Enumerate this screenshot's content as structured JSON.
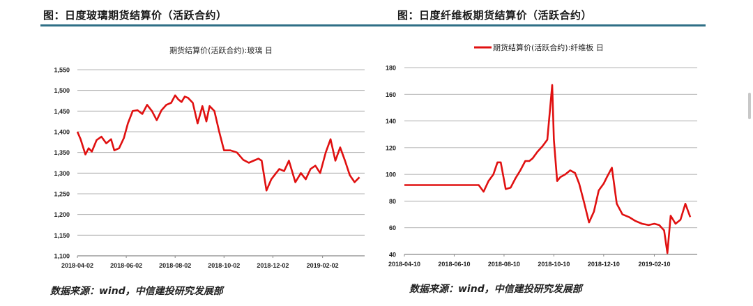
{
  "left_panel": {
    "figure_title": "图：日度玻璃期货结算价（活跃合约）",
    "source": "数据来源：wind，中信建投研究发展部"
  },
  "right_panel": {
    "figure_title": "图：日度纤维板期货结算价（活跃合约）",
    "source": "数据来源：wind，中信建投研究发展部"
  },
  "colors": {
    "line": "#e01010",
    "rule": "#2f6f86",
    "grid": "#9a9a9a"
  },
  "chart_data": [
    {
      "type": "line",
      "title": "期货结算价(活跃合约):玻璃 日",
      "xlabel": "",
      "ylabel": "",
      "ylim": [
        1100,
        1550
      ],
      "grid": true,
      "legend": "none",
      "y_ticks": [
        "1,550",
        "1,500",
        "1,450",
        "1,400",
        "1,350",
        "1,300",
        "1,250",
        "1,200",
        "1,150",
        "1,100"
      ],
      "x_ticks": [
        "2018-04-02",
        "2018-06-02",
        "2018-08-02",
        "2018-10-02",
        "2018-12-02",
        "2019-02-02"
      ],
      "series": [
        {
          "name": "期货结算价(活跃合约):玻璃 日",
          "x": [
            "2018-04-02",
            "2018-04-06",
            "2018-04-12",
            "2018-04-16",
            "2018-04-20",
            "2018-04-26",
            "2018-05-02",
            "2018-05-08",
            "2018-05-14",
            "2018-05-18",
            "2018-05-24",
            "2018-05-30",
            "2018-06-04",
            "2018-06-10",
            "2018-06-16",
            "2018-06-22",
            "2018-06-28",
            "2018-07-04",
            "2018-07-10",
            "2018-07-16",
            "2018-07-22",
            "2018-07-28",
            "2018-08-02",
            "2018-08-06",
            "2018-08-10",
            "2018-08-14",
            "2018-08-18",
            "2018-08-24",
            "2018-08-30",
            "2018-09-05",
            "2018-09-10",
            "2018-09-14",
            "2018-09-20",
            "2018-09-26",
            "2018-10-02",
            "2018-10-10",
            "2018-10-18",
            "2018-10-26",
            "2018-11-02",
            "2018-11-08",
            "2018-11-14",
            "2018-11-18",
            "2018-11-24",
            "2018-11-30",
            "2018-12-06",
            "2018-12-10",
            "2018-12-16",
            "2018-12-22",
            "2018-12-30",
            "2019-01-06",
            "2019-01-12",
            "2019-01-18",
            "2019-01-24",
            "2019-01-30",
            "2019-02-06",
            "2019-02-12",
            "2019-02-18",
            "2019-02-24",
            "2019-03-02",
            "2019-03-08",
            "2019-03-14",
            "2019-03-20"
          ],
          "values": [
            1400,
            1382,
            1345,
            1360,
            1352,
            1380,
            1388,
            1372,
            1382,
            1355,
            1360,
            1385,
            1420,
            1450,
            1452,
            1443,
            1465,
            1450,
            1428,
            1452,
            1465,
            1470,
            1488,
            1478,
            1472,
            1485,
            1482,
            1470,
            1420,
            1462,
            1425,
            1462,
            1450,
            1400,
            1355,
            1355,
            1350,
            1332,
            1325,
            1330,
            1335,
            1330,
            1258,
            1285,
            1300,
            1310,
            1305,
            1330,
            1278,
            1300,
            1285,
            1310,
            1318,
            1300,
            1350,
            1382,
            1330,
            1362,
            1330,
            1295,
            1278,
            1290
          ]
        }
      ]
    },
    {
      "type": "line",
      "title": "期货结算价(活跃合约):纤维板 日",
      "xlabel": "",
      "ylabel": "",
      "ylim": [
        40,
        180
      ],
      "grid": true,
      "legend": "top",
      "y_ticks": [
        "180",
        "160",
        "140",
        "120",
        "100",
        "80",
        "60",
        "40"
      ],
      "x_ticks": [
        "2018-04-10",
        "2018-06-10",
        "2018-08-10",
        "2018-10-10",
        "2018-12-10",
        "2019-02-10"
      ],
      "series": [
        {
          "name": "期货结算价(活跃合约):纤维板 日",
          "x": [
            "2018-04-10",
            "2018-05-10",
            "2018-06-10",
            "2018-07-10",
            "2018-07-16",
            "2018-07-22",
            "2018-07-28",
            "2018-08-02",
            "2018-08-06",
            "2018-08-12",
            "2018-08-18",
            "2018-08-24",
            "2018-08-30",
            "2018-09-05",
            "2018-09-10",
            "2018-09-14",
            "2018-09-20",
            "2018-09-26",
            "2018-10-02",
            "2018-10-08",
            "2018-10-10",
            "2018-10-14",
            "2018-10-18",
            "2018-10-24",
            "2018-10-30",
            "2018-11-05",
            "2018-11-10",
            "2018-11-16",
            "2018-11-22",
            "2018-11-28",
            "2018-12-04",
            "2018-12-10",
            "2018-12-14",
            "2018-12-20",
            "2018-12-26",
            "2019-01-02",
            "2019-01-10",
            "2019-01-18",
            "2019-01-26",
            "2019-02-03",
            "2019-02-10",
            "2019-02-16",
            "2019-02-22",
            "2019-02-26",
            "2019-03-02",
            "2019-03-08",
            "2019-03-14",
            "2019-03-20",
            "2019-03-26"
          ],
          "values": [
            92,
            92,
            92,
            92,
            87,
            95,
            100,
            109,
            109,
            89,
            90,
            97,
            103,
            110,
            110,
            112,
            117,
            121,
            126,
            167,
            126,
            95,
            98,
            100,
            103,
            101,
            93,
            79,
            64,
            72,
            88,
            93,
            98,
            105,
            78,
            70,
            68,
            65,
            63,
            62,
            63,
            62,
            58,
            41,
            69,
            63,
            66,
            78,
            68
          ]
        }
      ]
    }
  ]
}
